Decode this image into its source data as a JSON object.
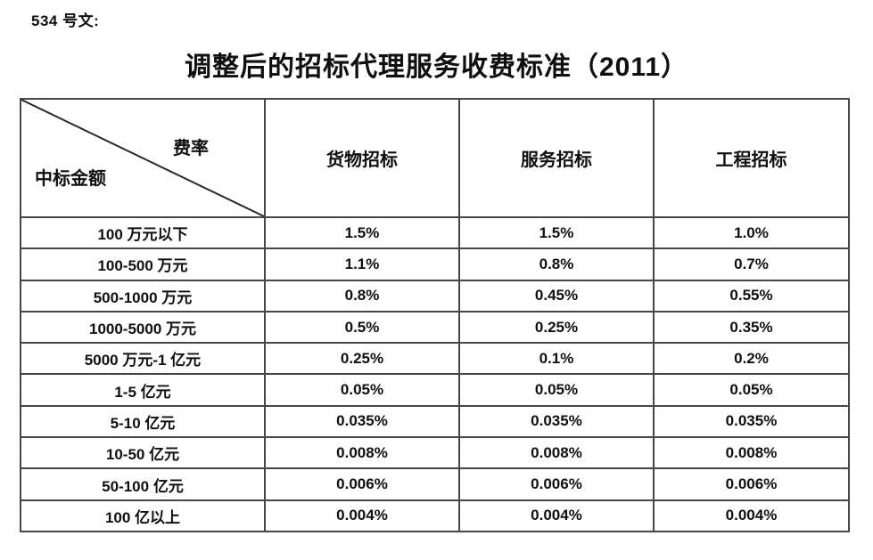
{
  "doc_label": "534 号文:",
  "title": "调整后的招标代理服务收费标准（2011）",
  "colors": {
    "text": "#0f0f0f",
    "table_border": "#474747",
    "background": "#ffffff"
  },
  "table": {
    "corner": {
      "top_right": "费率",
      "bottom_left": "中标金额"
    },
    "columns": [
      "货物招标",
      "服务招标",
      "工程招标"
    ],
    "rows": [
      {
        "amount": "100 万元以下",
        "values": [
          "1.5%",
          "1.5%",
          "1.0%"
        ]
      },
      {
        "amount": "100-500 万元",
        "values": [
          "1.1%",
          "0.8%",
          "0.7%"
        ]
      },
      {
        "amount": "500-1000 万元",
        "values": [
          "0.8%",
          "0.45%",
          "0.55%"
        ]
      },
      {
        "amount": "1000-5000 万元",
        "values": [
          "0.5%",
          "0.25%",
          "0.35%"
        ]
      },
      {
        "amount": "5000 万元-1 亿元",
        "values": [
          "0.25%",
          "0.1%",
          "0.2%"
        ]
      },
      {
        "amount": "1-5 亿元",
        "values": [
          "0.05%",
          "0.05%",
          "0.05%"
        ]
      },
      {
        "amount": "5-10 亿元",
        "values": [
          "0.035%",
          "0.035%",
          "0.035%"
        ]
      },
      {
        "amount": "10-50 亿元",
        "values": [
          "0.008%",
          "0.008%",
          "0.008%"
        ]
      },
      {
        "amount": "50-100 亿元",
        "values": [
          "0.006%",
          "0.006%",
          "0.006%"
        ]
      },
      {
        "amount": "100 亿以上",
        "values": [
          "0.004%",
          "0.004%",
          "0.004%"
        ]
      }
    ]
  }
}
